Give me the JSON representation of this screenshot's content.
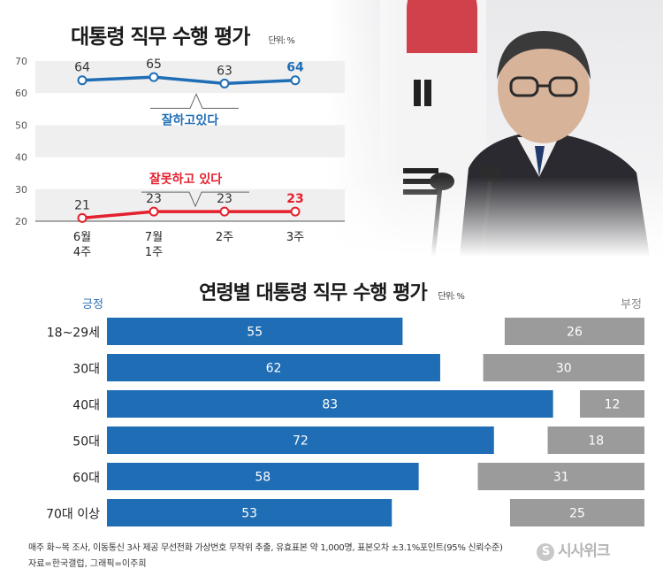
{
  "header": {
    "title": "대통령 직무 수행 평가",
    "unit": "단위: %"
  },
  "age_section": {
    "title": "연령별 대통령 직무 수행 평가",
    "unit": "단위: %",
    "positive_label": "긍정",
    "negative_label": "부정"
  },
  "footer": {
    "note": "매주 화~목 조사, 이동통신 3사 제공 무선전화 가상번호 무작위 추출, 유효표본 약 1,000명, 표본오차 ±3.1%포인트(95% 신뢰수준)",
    "source": "자료=한국갤럽, 그래픽=이주희",
    "logo_text": "시사위크"
  },
  "colors": {
    "positive": "#1f6db5",
    "negative": "#e5202d",
    "negative_bar": "#9b9b9b",
    "band": "#efefef"
  },
  "chart_data": [
    {
      "type": "line",
      "title": "대통령 직무 수행 평가",
      "unit": "단위: %",
      "categories": [
        "6월\n4주",
        "7월\n1주",
        "2주",
        "3주"
      ],
      "ylim": [
        20,
        70
      ],
      "yticks": [
        20,
        30,
        40,
        50,
        60,
        70
      ],
      "series": [
        {
          "name": "잘하고있다",
          "values": [
            64,
            65,
            63,
            64
          ],
          "color": "#1f6db5"
        },
        {
          "name": "잘못하고 있다",
          "values": [
            21,
            23,
            23,
            23
          ],
          "color": "#e5202d"
        }
      ]
    },
    {
      "type": "bar",
      "title": "연령별 대통령 직무 수행 평가",
      "unit": "단위: %",
      "categories": [
        "18~29세",
        "30대",
        "40대",
        "50대",
        "60대",
        "70대 이상"
      ],
      "series": [
        {
          "name": "긍정",
          "values": [
            55,
            62,
            83,
            72,
            58,
            53
          ],
          "color": "#1f6db5"
        },
        {
          "name": "부정",
          "values": [
            26,
            30,
            12,
            18,
            31,
            25
          ],
          "color": "#9b9b9b"
        }
      ]
    }
  ]
}
